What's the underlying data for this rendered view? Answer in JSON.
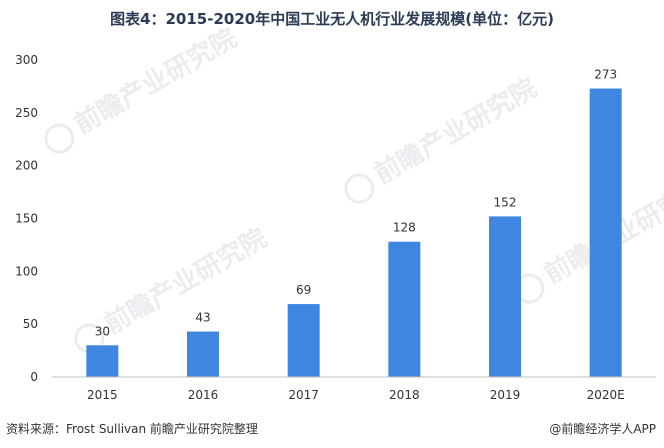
{
  "title": "图表4：2015-2020年中国工业无人机行业发展规模(单位：亿元)",
  "source": "资料来源：Frost Sullivan 前瞻产业研究院整理",
  "credit": "@前瞻经济学人APP",
  "watermark": "前瞻产业研究院",
  "colors": {
    "bar": "#3f86e1",
    "axis": "#bfbfbf",
    "text": "#333333"
  },
  "chart_data": {
    "type": "bar",
    "categories": [
      "2015",
      "2016",
      "2017",
      "2018",
      "2019",
      "2020E"
    ],
    "values": [
      30,
      43,
      69,
      128,
      152,
      273
    ],
    "value_labels": [
      "30",
      "43",
      "69",
      "128",
      "152",
      "273"
    ],
    "title": "图表4：2015-2020年中国工业无人机行业发展规模(单位：亿元)",
    "xlabel": "",
    "ylabel": "",
    "ylim": [
      0,
      300
    ],
    "yticks": [
      0,
      50,
      100,
      150,
      200,
      250,
      300
    ],
    "ytick_labels": [
      "0",
      "50",
      "100",
      "150",
      "200",
      "250",
      "300"
    ],
    "grid": false,
    "legend": "none"
  }
}
